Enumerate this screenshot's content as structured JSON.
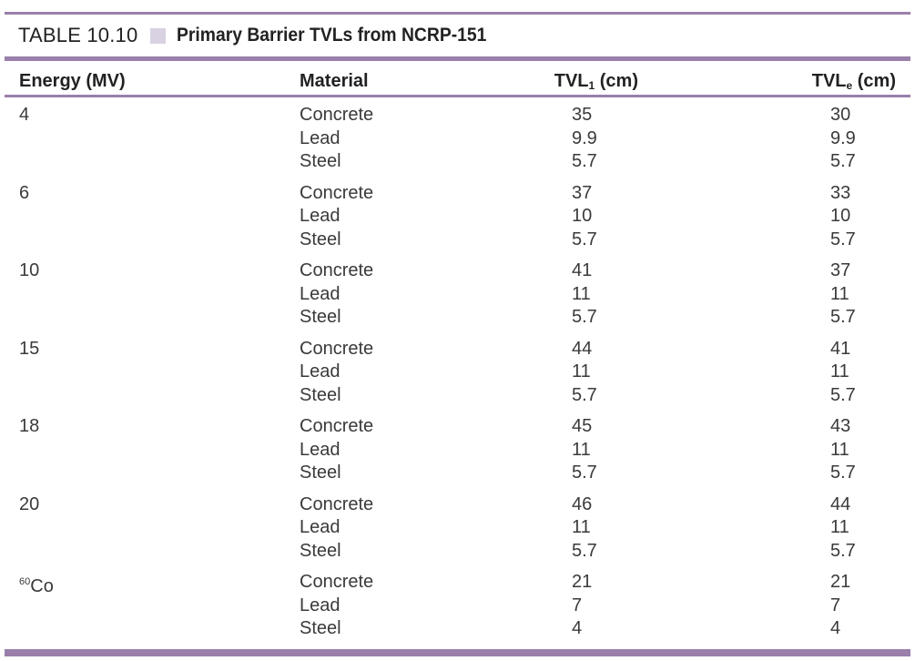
{
  "caption": {
    "number": "TABLE 10.10",
    "title": "Primary Barrier TVLs from NCRP-151"
  },
  "headers": {
    "energy": "Energy (MV)",
    "material": "Material",
    "tvl1_main": "TVL",
    "tvl1_sub": "1",
    "tvl1_unit": " (cm)",
    "tvle_main": "TVL",
    "tvle_sub": "e",
    "tvle_unit": " (cm)"
  },
  "groups": [
    {
      "energy": "4",
      "rows": [
        {
          "material": "Concrete",
          "tvl1": "35",
          "tvle": "30"
        },
        {
          "material": "Lead",
          "tvl1": "9.9",
          "tvle": "9.9"
        },
        {
          "material": "Steel",
          "tvl1": "5.7",
          "tvle": "5.7"
        }
      ]
    },
    {
      "energy": "6",
      "rows": [
        {
          "material": "Concrete",
          "tvl1": "37",
          "tvle": "33"
        },
        {
          "material": "Lead",
          "tvl1": "10",
          "tvle": "10"
        },
        {
          "material": "Steel",
          "tvl1": "5.7",
          "tvle": "5.7"
        }
      ]
    },
    {
      "energy": "10",
      "rows": [
        {
          "material": "Concrete",
          "tvl1": "41",
          "tvle": "37"
        },
        {
          "material": "Lead",
          "tvl1": "11",
          "tvle": "11"
        },
        {
          "material": "Steel",
          "tvl1": "5.7",
          "tvle": "5.7"
        }
      ]
    },
    {
      "energy": "15",
      "rows": [
        {
          "material": "Concrete",
          "tvl1": "44",
          "tvle": "41"
        },
        {
          "material": "Lead",
          "tvl1": "11",
          "tvle": "11"
        },
        {
          "material": "Steel",
          "tvl1": "5.7",
          "tvle": "5.7"
        }
      ]
    },
    {
      "energy": "18",
      "rows": [
        {
          "material": "Concrete",
          "tvl1": "45",
          "tvle": "43"
        },
        {
          "material": "Lead",
          "tvl1": "11",
          "tvle": "11"
        },
        {
          "material": "Steel",
          "tvl1": "5.7",
          "tvle": "5.7"
        }
      ]
    },
    {
      "energy": "20",
      "rows": [
        {
          "material": "Concrete",
          "tvl1": "46",
          "tvle": "44"
        },
        {
          "material": "Lead",
          "tvl1": "11",
          "tvle": "11"
        },
        {
          "material": "Steel",
          "tvl1": "5.7",
          "tvle": "5.7"
        }
      ]
    },
    {
      "energy_sup": "60",
      "energy": "Co",
      "rows": [
        {
          "material": "Concrete",
          "tvl1": "21",
          "tvle": "21"
        },
        {
          "material": "Lead",
          "tvl1": "7",
          "tvle": "7"
        },
        {
          "material": "Steel",
          "tvl1": "4",
          "tvle": "4"
        }
      ]
    }
  ]
}
